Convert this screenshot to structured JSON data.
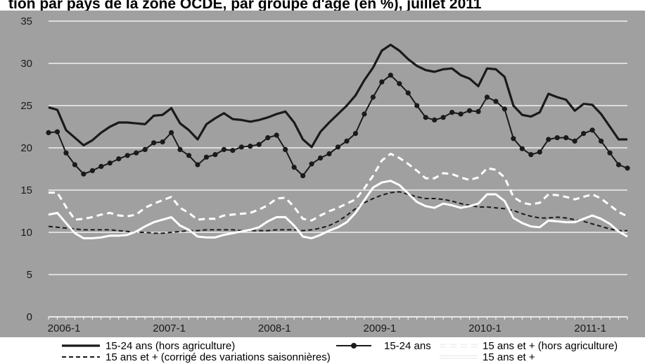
{
  "chart_data": {
    "type": "line",
    "title": "tion par pays de la zone OCDE, par groupe d'âge (en %), juillet 2011",
    "xlabel": "",
    "ylabel": "",
    "ylim": [
      0,
      35
    ],
    "yticks": [
      "0",
      "5",
      "10",
      "15",
      "20",
      "25",
      "30",
      "35"
    ],
    "xticks": [
      "2006-1",
      "2007-1",
      "2008-1",
      "2009-1",
      "2010-1",
      "2011-1"
    ],
    "grid": true,
    "legend_position": "bottom",
    "x": [
      "2006-1",
      "2006-2",
      "2006-3",
      "2006-4",
      "2006-5",
      "2006-6",
      "2006-7",
      "2006-8",
      "2006-9",
      "2006-10",
      "2006-11",
      "2006-12",
      "2007-1",
      "2007-2",
      "2007-3",
      "2007-4",
      "2007-5",
      "2007-6",
      "2007-7",
      "2007-8",
      "2007-9",
      "2007-10",
      "2007-11",
      "2007-12",
      "2008-1",
      "2008-2",
      "2008-3",
      "2008-4",
      "2008-5",
      "2008-6",
      "2008-7",
      "2008-8",
      "2008-9",
      "2008-10",
      "2008-11",
      "2008-12",
      "2009-1",
      "2009-2",
      "2009-3",
      "2009-4",
      "2009-5",
      "2009-6",
      "2009-7",
      "2009-8",
      "2009-9",
      "2009-10",
      "2009-11",
      "2009-12",
      "2010-1",
      "2010-2",
      "2010-3",
      "2010-4",
      "2010-5",
      "2010-6",
      "2010-7",
      "2010-8",
      "2010-9",
      "2010-10",
      "2010-11",
      "2010-12",
      "2011-1",
      "2011-2",
      "2011-3",
      "2011-4",
      "2011-5",
      "2011-6",
      "2011-7"
    ],
    "series": [
      {
        "name": "15-24 ans (hors agriculture)",
        "style": "solid-thick",
        "color": "#1a1a1a",
        "values": [
          24.8,
          24.5,
          22.1,
          21.2,
          20.3,
          20.9,
          21.8,
          22.5,
          23.0,
          23.0,
          22.9,
          22.8,
          23.8,
          23.9,
          24.7,
          22.9,
          22.1,
          21.0,
          22.8,
          23.5,
          24.1,
          23.4,
          23.3,
          23.1,
          23.3,
          23.6,
          24.0,
          24.3,
          23.0,
          21.0,
          20.1,
          21.9,
          23.0,
          24.0,
          25.0,
          26.2,
          28.0,
          29.5,
          31.5,
          32.2,
          31.5,
          30.5,
          29.7,
          29.2,
          29.0,
          29.3,
          29.4,
          28.6,
          28.2,
          27.3,
          29.4,
          29.3,
          28.4,
          25.0,
          23.9,
          23.7,
          24.2,
          26.4,
          26.0,
          25.7,
          24.4,
          25.2,
          25.1,
          24.0,
          22.5,
          21.0,
          21.0
        ]
      },
      {
        "name": "15-24 ans",
        "style": "solid-markers",
        "color": "#1a1a1a",
        "values": [
          21.8,
          21.9,
          19.4,
          18.0,
          16.9,
          17.3,
          17.8,
          18.2,
          18.7,
          19.1,
          19.4,
          19.8,
          20.6,
          20.7,
          21.8,
          19.8,
          19.1,
          18.0,
          18.9,
          19.2,
          19.8,
          19.7,
          20.1,
          20.2,
          20.4,
          21.2,
          21.5,
          19.8,
          17.7,
          16.7,
          18.1,
          18.8,
          19.3,
          20.1,
          20.8,
          21.7,
          24.0,
          26.0,
          27.8,
          28.6,
          27.6,
          26.5,
          25.0,
          23.6,
          23.3,
          23.6,
          24.2,
          24.0,
          24.4,
          24.3,
          26.0,
          25.5,
          24.6,
          21.1,
          19.9,
          19.2,
          19.5,
          21.0,
          21.2,
          21.2,
          20.8,
          21.7,
          22.1,
          20.8,
          19.4,
          18.0,
          17.6
        ]
      },
      {
        "name": "15 ans et + (hors agriculture)",
        "style": "dashed-white",
        "color": "#ffffff",
        "values": [
          14.7,
          14.7,
          13.0,
          11.5,
          11.6,
          11.8,
          12.1,
          12.3,
          12.0,
          11.9,
          12.1,
          12.9,
          13.4,
          13.8,
          14.2,
          12.9,
          12.3,
          11.5,
          11.6,
          11.6,
          12.0,
          12.1,
          12.2,
          12.3,
          12.7,
          13.2,
          14.0,
          14.1,
          13.0,
          11.6,
          11.4,
          12.0,
          12.5,
          12.9,
          13.4,
          13.9,
          15.2,
          16.7,
          18.5,
          19.3,
          18.8,
          18.1,
          17.3,
          16.4,
          16.4,
          17.0,
          16.9,
          16.5,
          16.2,
          16.5,
          17.6,
          17.4,
          16.5,
          14.2,
          13.5,
          13.3,
          13.5,
          14.5,
          14.4,
          14.2,
          13.9,
          14.2,
          14.5,
          14.0,
          13.2,
          12.4,
          11.9
        ]
      },
      {
        "name": "15 ans et + (corrigé des variations saisonnières)",
        "style": "dashed-dark",
        "color": "#1a1a1a",
        "values": [
          10.7,
          10.6,
          10.5,
          10.4,
          10.3,
          10.3,
          10.3,
          10.3,
          10.2,
          10.1,
          10.0,
          10.0,
          9.9,
          9.9,
          10.0,
          10.1,
          10.2,
          10.2,
          10.3,
          10.3,
          10.3,
          10.3,
          10.2,
          10.2,
          10.2,
          10.2,
          10.3,
          10.3,
          10.3,
          10.2,
          10.3,
          10.5,
          10.8,
          11.3,
          12.0,
          12.8,
          13.5,
          14.0,
          14.4,
          14.7,
          14.8,
          14.5,
          14.2,
          14.0,
          14.0,
          13.9,
          13.7,
          13.4,
          13.2,
          13.0,
          13.0,
          12.9,
          12.8,
          12.6,
          12.2,
          11.9,
          11.7,
          11.7,
          11.8,
          11.7,
          11.5,
          11.3,
          11.0,
          10.7,
          10.4,
          10.2,
          10.2
        ]
      },
      {
        "name": "15 ans et +",
        "style": "solid-white",
        "color": "#ffffff",
        "values": [
          12.1,
          12.3,
          11.1,
          9.9,
          9.3,
          9.3,
          9.4,
          9.6,
          9.6,
          9.7,
          10.1,
          10.7,
          11.2,
          11.5,
          11.8,
          10.8,
          10.3,
          9.5,
          9.4,
          9.4,
          9.7,
          9.9,
          10.1,
          10.3,
          10.6,
          11.3,
          11.8,
          11.8,
          10.8,
          9.5,
          9.3,
          9.7,
          10.2,
          10.6,
          11.2,
          12.3,
          13.8,
          15.3,
          15.9,
          16.1,
          15.6,
          14.6,
          13.6,
          13.1,
          12.9,
          13.4,
          13.2,
          12.9,
          13.1,
          13.4,
          14.5,
          14.5,
          13.7,
          11.7,
          11.1,
          10.7,
          10.6,
          11.4,
          11.3,
          11.2,
          11.2,
          11.6,
          12.0,
          11.6,
          11.0,
          10.1,
          9.5
        ]
      }
    ]
  }
}
